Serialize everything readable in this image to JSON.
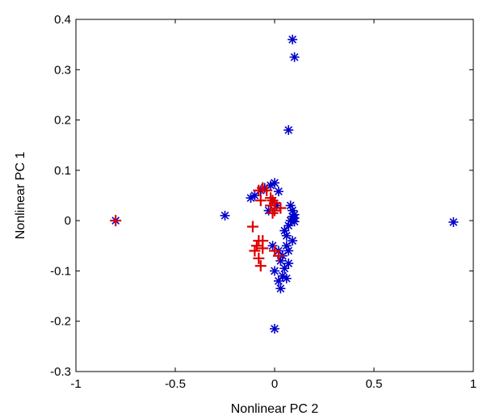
{
  "chart_data": {
    "type": "scatter",
    "xlabel": "Nonlinear PC 2",
    "ylabel": "Nonlinear PC 1",
    "xlim": [
      -1,
      1
    ],
    "ylim": [
      -0.3,
      0.4
    ],
    "xticks": [
      -1,
      -0.5,
      0,
      0.5,
      1
    ],
    "xtick_labels": [
      "-1",
      "-0.5",
      "0",
      "0.5",
      "1"
    ],
    "yticks": [
      -0.3,
      -0.2,
      -0.1,
      0,
      0.1,
      0.2,
      0.3,
      0.4
    ],
    "ytick_labels": [
      "-0.3",
      "-0.2",
      "-0.1",
      "0",
      "0.1",
      "0.2",
      "0.3",
      "0.4"
    ],
    "grid": false,
    "series": [
      {
        "marker": "asterisk",
        "color": "#0000cc",
        "points": [
          [
            0.09,
            0.36
          ],
          [
            0.1,
            0.325
          ],
          [
            0.07,
            0.18
          ],
          [
            -0.25,
            0.01
          ],
          [
            -0.8,
            0.0
          ],
          [
            0.9,
            -0.003
          ],
          [
            -0.1,
            0.05
          ],
          [
            -0.12,
            0.045
          ],
          [
            -0.07,
            0.06
          ],
          [
            -0.05,
            0.065
          ],
          [
            -0.02,
            0.07
          ],
          [
            0.0,
            0.075
          ],
          [
            0.02,
            0.058
          ],
          [
            -0.01,
            0.04
          ],
          [
            0.01,
            0.03
          ],
          [
            -0.03,
            0.02
          ],
          [
            0.08,
            0.03
          ],
          [
            0.09,
            0.02
          ],
          [
            0.1,
            0.012
          ],
          [
            0.09,
            0.008
          ],
          [
            0.1,
            0.005
          ],
          [
            0.08,
            0.0
          ],
          [
            0.1,
            -0.002
          ],
          [
            0.07,
            -0.01
          ],
          [
            0.05,
            -0.02
          ],
          [
            0.06,
            -0.03
          ],
          [
            0.09,
            -0.04
          ],
          [
            0.06,
            -0.05
          ],
          [
            0.07,
            -0.06
          ],
          [
            0.04,
            -0.07
          ],
          [
            0.03,
            -0.08
          ],
          [
            0.07,
            -0.085
          ],
          [
            0.05,
            -0.095
          ],
          [
            0.0,
            -0.1
          ],
          [
            0.04,
            -0.11
          ],
          [
            0.06,
            -0.115
          ],
          [
            0.02,
            -0.12
          ],
          [
            0.03,
            -0.135
          ],
          [
            0.0,
            -0.215
          ],
          [
            0.02,
            -0.06
          ],
          [
            -0.01,
            -0.05
          ]
        ]
      },
      {
        "marker": "plus",
        "color": "#dd0000",
        "points": [
          [
            -0.8,
            0.0
          ],
          [
            -0.08,
            0.06
          ],
          [
            -0.06,
            0.065
          ],
          [
            -0.04,
            0.06
          ],
          [
            -0.07,
            0.04
          ],
          [
            -0.02,
            0.045
          ],
          [
            -0.01,
            0.04
          ],
          [
            0.0,
            0.035
          ],
          [
            -0.02,
            0.03
          ],
          [
            0.0,
            0.02
          ],
          [
            -0.01,
            0.015
          ],
          [
            0.03,
            0.025
          ],
          [
            -0.11,
            -0.012
          ],
          [
            -0.08,
            -0.04
          ],
          [
            -0.09,
            -0.05
          ],
          [
            -0.06,
            -0.055
          ],
          [
            -0.1,
            -0.06
          ],
          [
            0.0,
            -0.06
          ],
          [
            0.02,
            -0.07
          ],
          [
            -0.08,
            -0.075
          ],
          [
            -0.07,
            -0.09
          ],
          [
            -0.06,
            -0.04
          ]
        ]
      }
    ]
  }
}
